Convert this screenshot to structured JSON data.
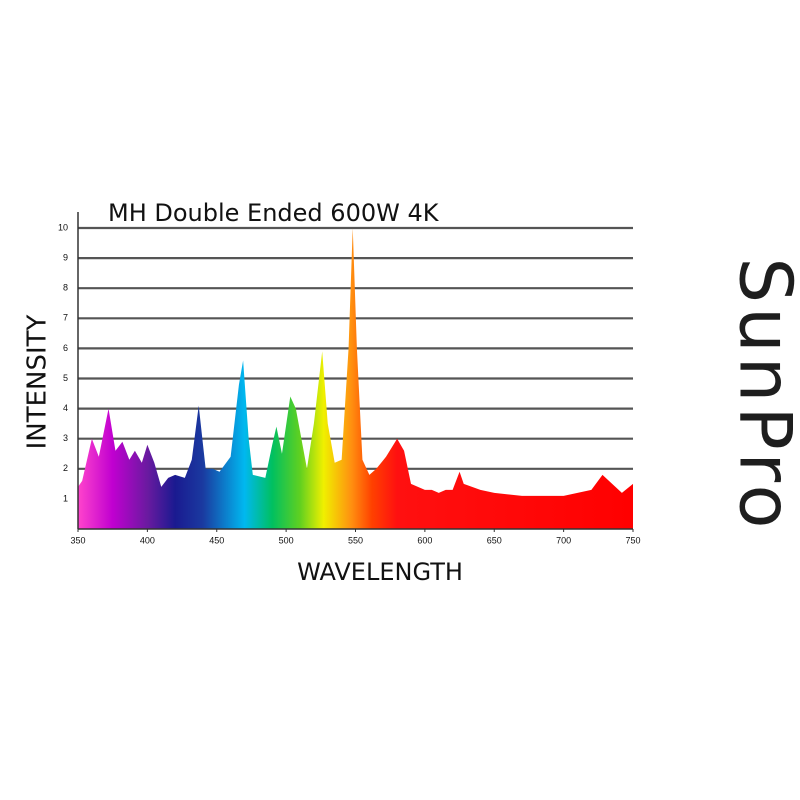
{
  "chart_data": {
    "type": "area",
    "title": "MH Double Ended 600W 4K",
    "x_label": "WAVELENGTH",
    "y_label": "INTENSITY",
    "x": [
      350,
      353,
      360,
      365,
      372,
      377,
      382,
      387,
      391,
      396,
      400,
      405,
      410,
      415,
      420,
      427,
      432,
      437,
      442,
      447,
      452,
      460,
      466,
      469,
      473,
      476,
      485,
      490,
      493,
      497,
      503,
      507,
      515,
      520,
      526,
      530,
      535,
      540,
      545,
      548,
      551,
      555,
      560,
      565,
      572,
      580,
      585,
      590,
      595,
      600,
      605,
      610,
      615,
      620,
      625,
      628,
      640,
      650,
      670,
      690,
      700,
      710,
      720,
      728,
      735,
      742,
      750
    ],
    "values": [
      1.4,
      1.6,
      3.0,
      2.4,
      4.0,
      2.6,
      2.9,
      2.3,
      2.6,
      2.2,
      2.8,
      2.2,
      1.4,
      1.7,
      1.8,
      1.7,
      2.3,
      4.1,
      2.0,
      2.0,
      1.9,
      2.4,
      4.8,
      5.6,
      3.0,
      1.8,
      1.7,
      2.8,
      3.4,
      2.5,
      4.4,
      4.0,
      2.0,
      3.5,
      5.9,
      3.5,
      2.2,
      2.3,
      6.0,
      10.0,
      6.0,
      2.3,
      1.8,
      2.0,
      2.4,
      3.0,
      2.6,
      1.5,
      1.4,
      1.3,
      1.3,
      1.2,
      1.3,
      1.3,
      1.9,
      1.5,
      1.3,
      1.2,
      1.1,
      1.1,
      1.1,
      1.2,
      1.3,
      1.8,
      1.5,
      1.2,
      1.5
    ],
    "xlim": [
      350,
      750
    ],
    "ylim": [
      0,
      10
    ],
    "xticks": [
      350,
      400,
      450,
      500,
      550,
      600,
      650,
      700,
      750
    ],
    "yticks": [
      1,
      2,
      3,
      4,
      5,
      6,
      7,
      8,
      9,
      10
    ],
    "grid": true,
    "color_stops": [
      {
        "x": 350,
        "color": "#ff44cc"
      },
      {
        "x": 375,
        "color": "#c000d0"
      },
      {
        "x": 400,
        "color": "#6a1aa0"
      },
      {
        "x": 420,
        "color": "#1a1a90"
      },
      {
        "x": 440,
        "color": "#1a3aa0"
      },
      {
        "x": 470,
        "color": "#00b8f0"
      },
      {
        "x": 490,
        "color": "#00c060"
      },
      {
        "x": 510,
        "color": "#60d020"
      },
      {
        "x": 527,
        "color": "#f0f000"
      },
      {
        "x": 547,
        "color": "#ff9010"
      },
      {
        "x": 562,
        "color": "#ff4000"
      },
      {
        "x": 580,
        "color": "#ff1010"
      },
      {
        "x": 750,
        "color": "#ff0000"
      }
    ]
  },
  "brand": "SunPro"
}
